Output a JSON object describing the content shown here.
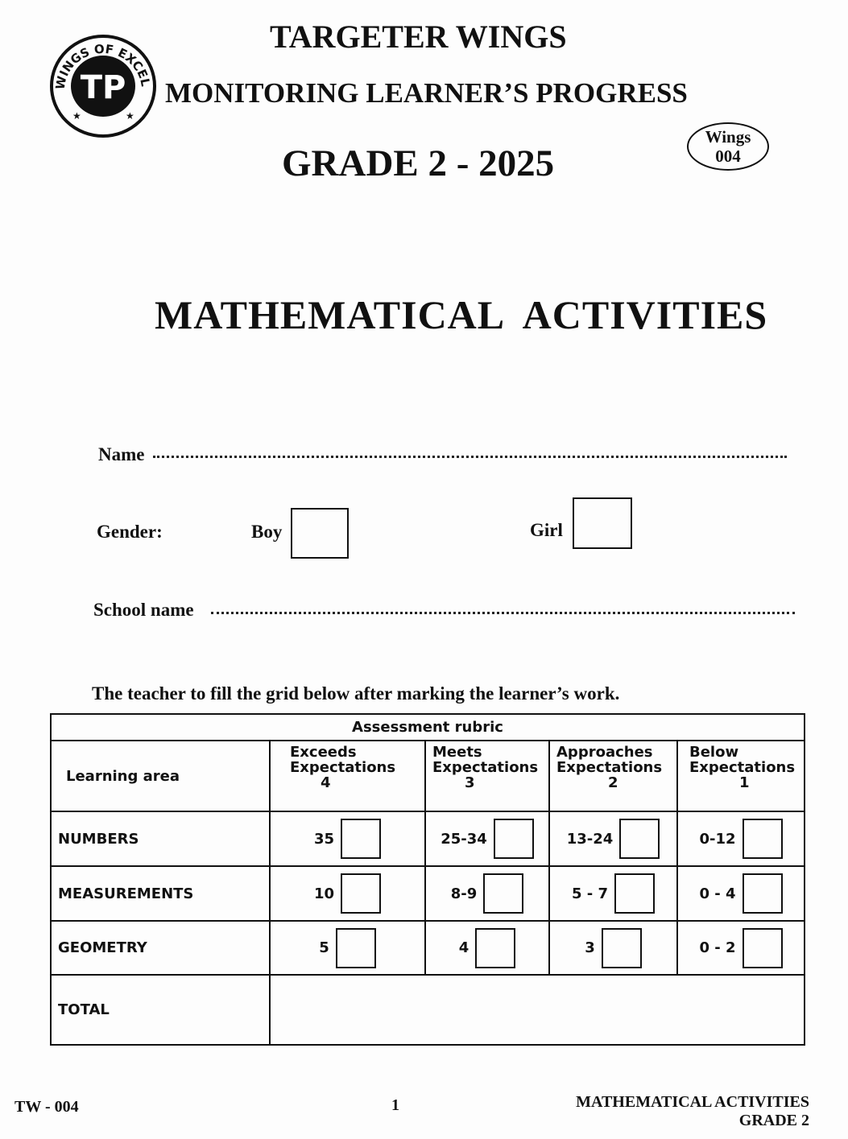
{
  "header": {
    "title": "TARGETER WINGS",
    "subtitle": "MONITORING LEARNER’S PROGRESS",
    "grade": "GRADE 2 - 2025",
    "badge_line1": "Wings",
    "badge_line2": "004",
    "logo_text": "WINGS OF EXCELLENCE"
  },
  "subject": "MATHEMATICAL  ACTIVITIES",
  "form": {
    "name_label": "Name",
    "gender_label": "Gender:",
    "boy_label": "Boy",
    "girl_label": "Girl",
    "school_label": "School name"
  },
  "instruction": "The teacher to fill the grid below after marking the learner’s work.",
  "rubric": {
    "title": "Assessment rubric",
    "first_col": "Learning area",
    "levels": [
      {
        "l1": "Exceeds",
        "l2": "Expectations",
        "score": "4"
      },
      {
        "l1": "Meets",
        "l2": "Expectations",
        "score": "3"
      },
      {
        "l1": "Approaches",
        "l2": "Expectations",
        "score": "2"
      },
      {
        "l1": "Below",
        "l2": "Expectations",
        "score": "1"
      }
    ],
    "rows": [
      {
        "area": "NUMBERS",
        "values": [
          "35",
          "25-34",
          "13-24",
          "0-12"
        ]
      },
      {
        "area": "MEASUREMENTS",
        "values": [
          "10",
          "8-9",
          "5 - 7",
          "0 - 4"
        ]
      },
      {
        "area": "GEOMETRY",
        "values": [
          "5",
          "4",
          "3",
          "0 - 2"
        ]
      }
    ],
    "total_label": "TOTAL"
  },
  "footer": {
    "code": "TW - 004",
    "page": "1",
    "subject": "MATHEMATICAL ACTIVITIES",
    "grade": "GRADE 2"
  }
}
